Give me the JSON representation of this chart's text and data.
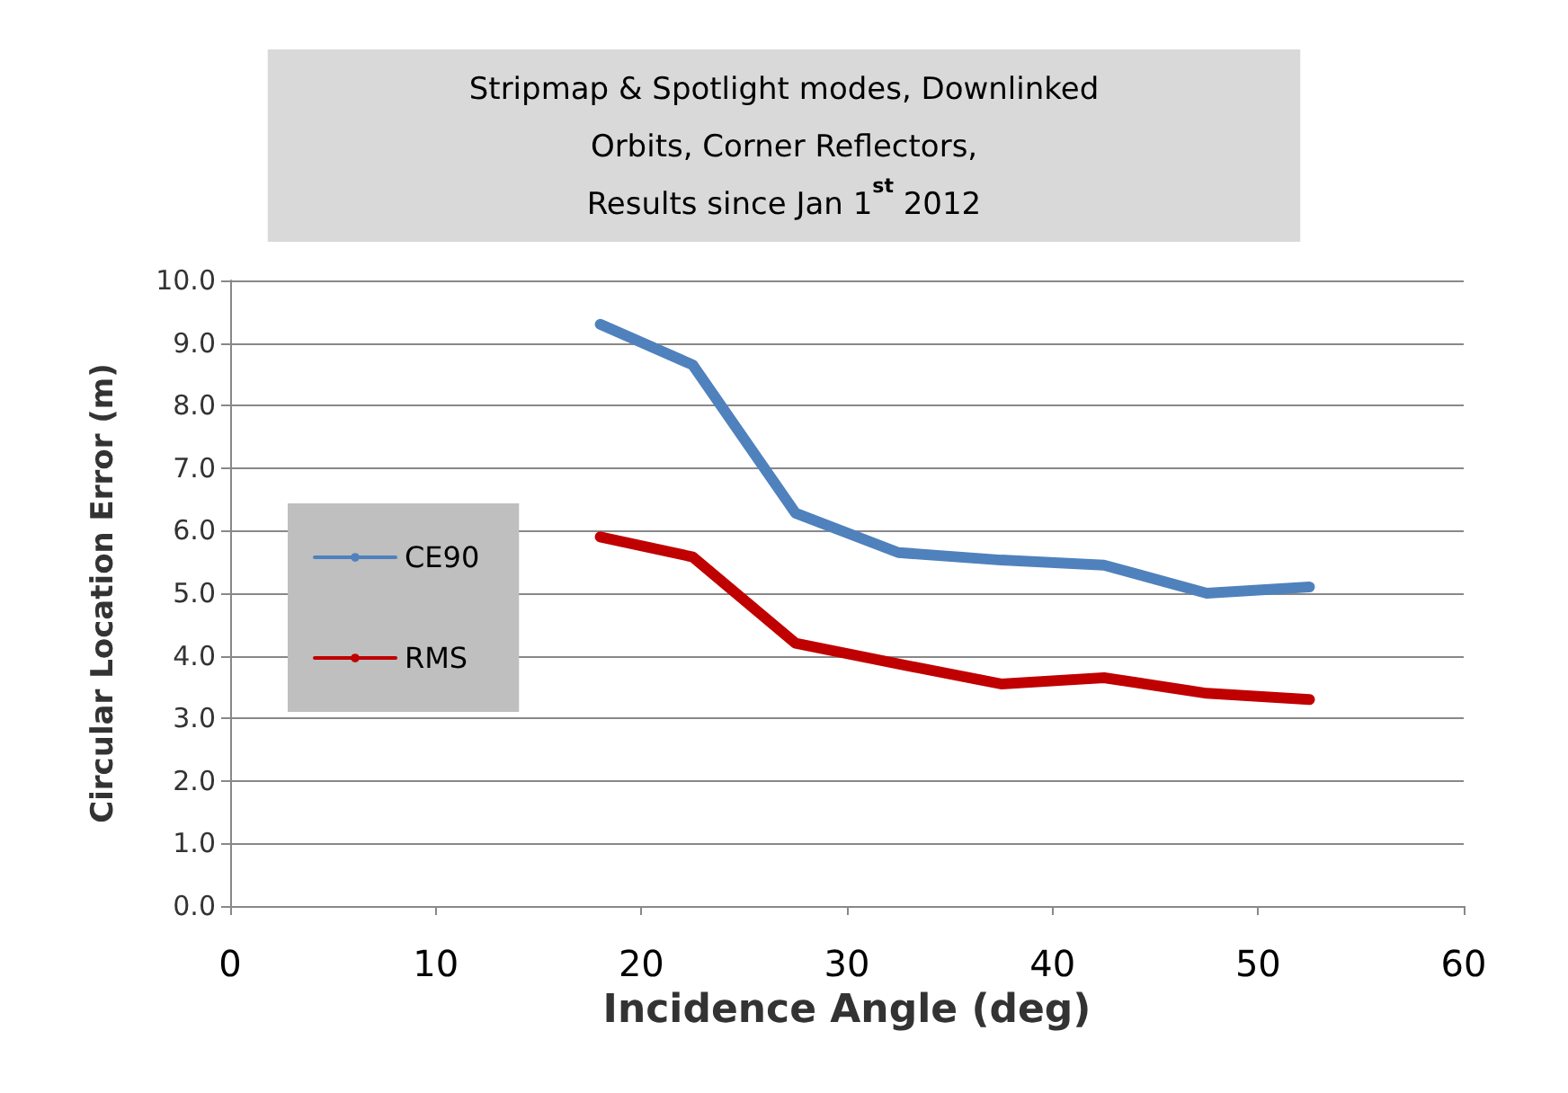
{
  "chart_data": {
    "type": "line",
    "title": "Stripmap & Spotlight modes, Downlinked\nOrbits, Corner Reflectors,\nResults since Jan 1$^{st}$ 2012",
    "xlabel": "Incidence Angle (deg)",
    "ylabel": "Circular Location Error (m)",
    "x": [
      18,
      22.5,
      27.5,
      32.5,
      37.5,
      42.5,
      47.5,
      52.5
    ],
    "series": [
      {
        "name": "CE90",
        "color": "#4f81bd",
        "values": [
          9.3,
          8.65,
          6.28,
          5.65,
          5.53,
          5.45,
          5.0,
          5.1
        ]
      },
      {
        "name": "RMS",
        "color": "#c00000",
        "values": [
          5.9,
          5.58,
          4.2,
          3.87,
          3.55,
          3.65,
          3.4,
          3.3
        ]
      }
    ],
    "xlim": [
      0,
      60
    ],
    "xticks": [
      0,
      10,
      20,
      30,
      40,
      50,
      60
    ],
    "ylim": [
      0,
      10
    ],
    "yticks": [
      {
        "value": 0,
        "label": "0.0"
      },
      {
        "value": 1,
        "label": "1.0"
      },
      {
        "value": 2,
        "label": "2.0"
      },
      {
        "value": 3,
        "label": "3.0"
      },
      {
        "value": 4,
        "label": "4.0"
      },
      {
        "value": 5,
        "label": "5.0"
      },
      {
        "value": 6,
        "label": "6.0"
      },
      {
        "value": 7,
        "label": "7.0"
      },
      {
        "value": 8,
        "label": "8.0"
      },
      {
        "value": 9,
        "label": "9.0"
      },
      {
        "value": 10,
        "label": "10.0"
      }
    ],
    "grid": "y",
    "legend": "left",
    "marker": "none",
    "line_style": "solid"
  }
}
